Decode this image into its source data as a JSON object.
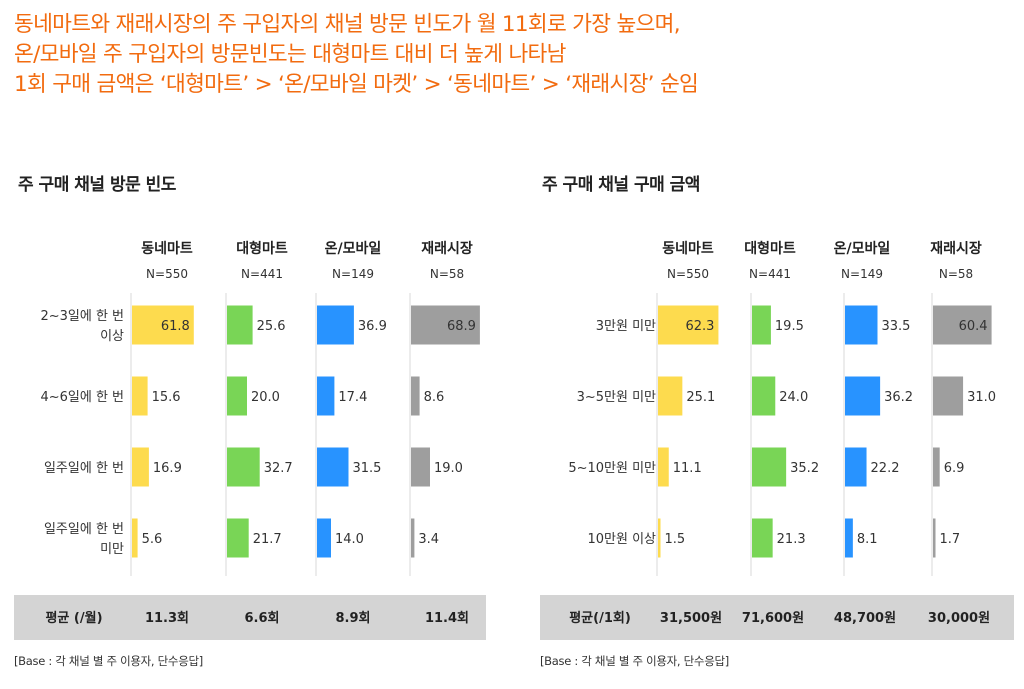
{
  "headline": [
    "동네마트와 재래시장의 주 구입자의 채널 방문 빈도가 월 11회로 가장 높으며,",
    "온/모바일 주 구입자의 방문빈도는 대형마트 대비 더 높게 나타남",
    "1회 구매 금액은 ‘대형마트’ > ‘온/모바일 마켓’ > ‘동네마트’ > ‘재래시장’ 순임"
  ],
  "colors": {
    "headline": "#f26b0f",
    "local_mart": "#fddb4e",
    "hypermarket": "#79d556",
    "online": "#2893ff",
    "market": "#9e9e9e",
    "avg_bar": "#d4d4d4"
  },
  "chart_data": [
    {
      "type": "bar",
      "orientation": "horizontal",
      "title": "주 구매 채널 방문 빈도",
      "categories": [
        "2~3일에 한 번\n이상",
        "4~6일에 한 번",
        "일주일에 한 번",
        "일주일에 한 번\n미만"
      ],
      "series": [
        {
          "name": "동네마트",
          "n": "N=550",
          "values": [
            61.8,
            15.6,
            16.9,
            5.6
          ],
          "labels": [
            "61.8",
            "15.6",
            "16.9",
            "5.6"
          ],
          "avg": "11.3회"
        },
        {
          "name": "대형마트",
          "n": "N=441",
          "values": [
            25.6,
            20.0,
            32.7,
            21.7
          ],
          "labels": [
            "25.6",
            "20.0",
            "32.7",
            "21.7"
          ],
          "avg": "6.6회"
        },
        {
          "name": "온/모바일",
          "n": "N=149",
          "values": [
            36.9,
            17.4,
            31.5,
            14.0
          ],
          "labels": [
            "36.9",
            "17.4",
            "31.5",
            "14.0"
          ],
          "avg": "8.9회"
        },
        {
          "name": "재래시장",
          "n": "N=58",
          "values": [
            68.9,
            8.6,
            19.0,
            3.4
          ],
          "labels": [
            "68.9",
            "8.6",
            "19.0",
            "3.4"
          ],
          "avg": "11.4회"
        }
      ],
      "average_label": "평균 (/월)",
      "base_note": "[Base :  각 채널 별 주 이용자, 단수응답]"
    },
    {
      "type": "bar",
      "orientation": "horizontal",
      "title": "주 구매 채널 구매 금액",
      "categories": [
        "3만원 미만",
        "3~5만원 미만",
        "5~10만원 미만",
        "10만원 이상"
      ],
      "series": [
        {
          "name": "동네마트",
          "n": "N=550",
          "values": [
            62.3,
            25.1,
            11.1,
            1.5
          ],
          "labels": [
            "62.3",
            "25.1",
            "11.1",
            "1.5"
          ],
          "avg": "31,500원"
        },
        {
          "name": "대형마트",
          "n": "N=441",
          "values": [
            19.5,
            24.0,
            35.2,
            21.3
          ],
          "labels": [
            "19.5",
            "24.0",
            "35.2",
            "21.3"
          ],
          "avg": "71,600원"
        },
        {
          "name": "온/모바일",
          "n": "N=149",
          "values": [
            33.5,
            36.2,
            22.2,
            8.1
          ],
          "labels": [
            "33.5",
            "36.2",
            "22.2",
            "8.1"
          ],
          "avg": "48,700원"
        },
        {
          "name": "재래시장",
          "n": "N=58",
          "values": [
            60.4,
            31.0,
            6.9,
            1.7
          ],
          "labels": [
            "60.4",
            "31.0",
            "6.9",
            "1.7"
          ],
          "avg": "30,000원"
        }
      ],
      "average_label": "평균(/1회)",
      "base_note": "[Base :  각 채널 별 주 이용자, 단수응답]"
    }
  ]
}
